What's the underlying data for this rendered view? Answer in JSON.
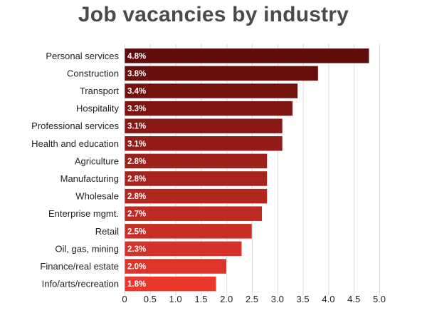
{
  "chart_data": {
    "type": "bar",
    "orientation": "horizontal",
    "title": "Job vacancies by industry",
    "categories": [
      "Personal services",
      "Construction",
      "Transport",
      "Hospitality",
      "Professional services",
      "Health and education",
      "Agriculture",
      "Manufacturing",
      "Wholesale",
      "Enterprise mgmt.",
      "Retail",
      "Oil, gas, mining",
      "Finance/real estate",
      "Info/arts/recreation"
    ],
    "values": [
      4.8,
      3.8,
      3.4,
      3.3,
      3.1,
      3.1,
      2.8,
      2.8,
      2.8,
      2.7,
      2.5,
      2.3,
      2.0,
      1.8
    ],
    "data_labels": [
      "4.8%",
      "3.8%",
      "3.4%",
      "3.3%",
      "3.1%",
      "3.1%",
      "2.8%",
      "2.8%",
      "2.8%",
      "2.7%",
      "2.5%",
      "2.3%",
      "2.0%",
      "1.8%"
    ],
    "xticks": [
      "0",
      "0.5",
      "1.0",
      "1.5",
      "2.0",
      "2.5",
      "3.0",
      "3.5",
      "4.0",
      "4.5",
      "5.0"
    ],
    "xlim": [
      0,
      5.0
    ],
    "xlabel": "",
    "ylabel": "",
    "grid": true,
    "colors": {
      "bar_darkest": "#5e0b0b",
      "bar_lightest": "#e8382e",
      "bar_stroke": "#ffffff",
      "grid": "#d9d9d9",
      "title": "#4a4a4a"
    }
  }
}
